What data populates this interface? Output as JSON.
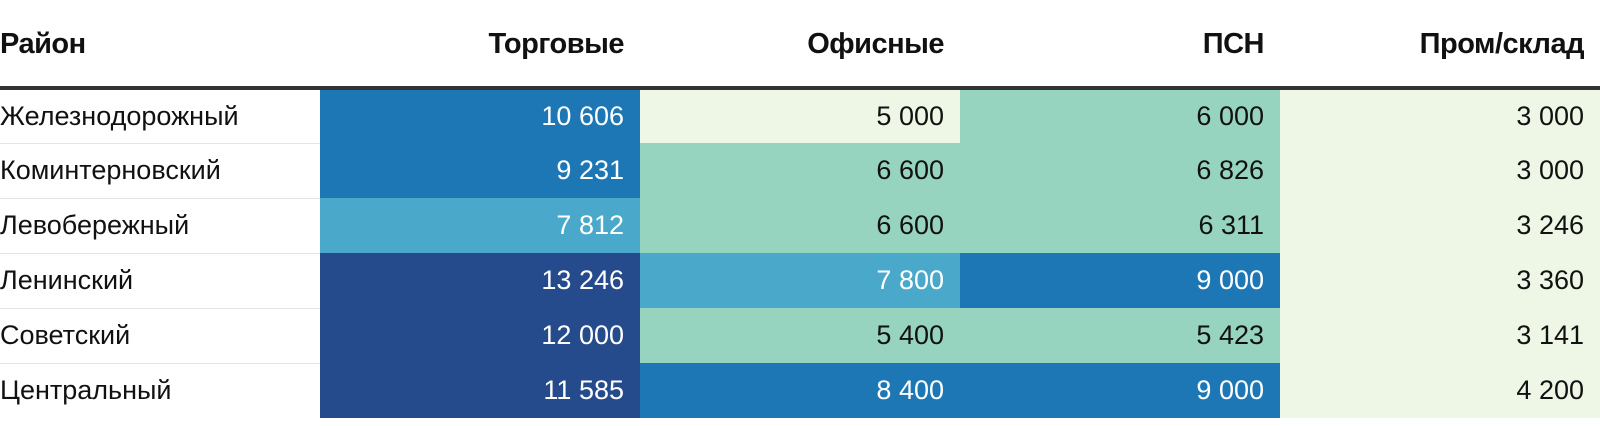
{
  "chart_data": {
    "type": "table",
    "columns": [
      "Район",
      "Торговые",
      "Офисные",
      "ПСН",
      "Пром/склад"
    ],
    "rows": [
      {
        "district": "Железнодорожный",
        "values": [
          "10 606",
          "5 000",
          "6 000",
          "3 000"
        ],
        "numbers": [
          10606,
          5000,
          6000,
          3000
        ]
      },
      {
        "district": "Коминтерновский",
        "values": [
          "9 231",
          "6 600",
          "6 826",
          "3 000"
        ],
        "numbers": [
          9231,
          6600,
          6826,
          3000
        ]
      },
      {
        "district": "Левобережный",
        "values": [
          "7 812",
          "6 600",
          "6 311",
          "3 246"
        ],
        "numbers": [
          7812,
          6600,
          6311,
          3246
        ]
      },
      {
        "district": "Ленинский",
        "values": [
          "13 246",
          "7 800",
          "9 000",
          "3 360"
        ],
        "numbers": [
          13246,
          7800,
          9000,
          3360
        ]
      },
      {
        "district": "Советский",
        "values": [
          "12 000",
          "5 400",
          "5 423",
          "3 141"
        ],
        "numbers": [
          12000,
          5400,
          5423,
          3141
        ]
      },
      {
        "district": "Центральный",
        "values": [
          "11 585",
          "8 400",
          "9 000",
          "4 200"
        ],
        "numbers": [
          11585,
          8400,
          9000,
          4200
        ]
      }
    ],
    "color_scale": [
      {
        "max": 5200,
        "bg": "#eef7e6",
        "fg": "#111111"
      },
      {
        "max": 7000,
        "bg": "#97d4c0",
        "fg": "#111111"
      },
      {
        "max": 8000,
        "bg": "#4aa8cb",
        "fg": "#ffffff"
      },
      {
        "max": 11000,
        "bg": "#1e77b5",
        "fg": "#ffffff"
      },
      {
        "max": 100000,
        "bg": "#254b8c",
        "fg": "#ffffff"
      }
    ]
  }
}
